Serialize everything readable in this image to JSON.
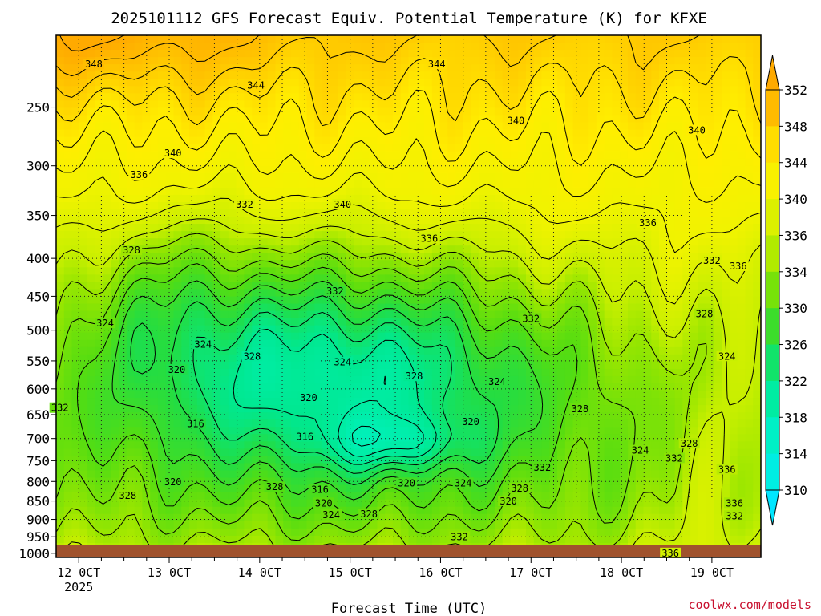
{
  "chart_data": {
    "type": "heatmap",
    "title": "2025101112 GFS Forecast Equiv. Potential Temperature (K) for KFXE",
    "xlabel": "Forecast Time (UTC)",
    "credit": "coolwx.com/models",
    "x_ticks": [
      {
        "label": "12 0CT",
        "hour": 0,
        "sub": "2025"
      },
      {
        "label": "13 0CT",
        "hour": 24,
        "sub": ""
      },
      {
        "label": "14 0CT",
        "hour": 48,
        "sub": ""
      },
      {
        "label": "15 0CT",
        "hour": 72,
        "sub": ""
      },
      {
        "label": "16 0CT",
        "hour": 96,
        "sub": ""
      },
      {
        "label": "17 0CT",
        "hour": 120,
        "sub": ""
      },
      {
        "label": "18 0CT",
        "hour": 144,
        "sub": ""
      },
      {
        "label": "19 0CT",
        "hour": 168,
        "sub": ""
      }
    ],
    "xlim_hours": [
      -6,
      181
    ],
    "y_ticks": [
      250,
      300,
      350,
      400,
      450,
      500,
      550,
      600,
      650,
      700,
      750,
      800,
      850,
      900,
      950,
      1000
    ],
    "ylim_hpa": [
      1013,
      200
    ],
    "y_scale": "log",
    "colorbar": {
      "ticks": [
        310,
        314,
        318,
        322,
        326,
        330,
        334,
        336,
        340,
        344,
        348,
        352
      ],
      "stops": [
        {
          "value": 306,
          "color": "#00e6ff"
        },
        {
          "value": 314,
          "color": "#00f0d8"
        },
        {
          "value": 318,
          "color": "#00f0b4"
        },
        {
          "value": 322,
          "color": "#00e890"
        },
        {
          "value": 326,
          "color": "#22dd44"
        },
        {
          "value": 330,
          "color": "#55dd11"
        },
        {
          "value": 334,
          "color": "#99e600"
        },
        {
          "value": 336,
          "color": "#c8ef00"
        },
        {
          "value": 340,
          "color": "#f0f300"
        },
        {
          "value": 344,
          "color": "#ffee00"
        },
        {
          "value": 348,
          "color": "#ffcc00"
        },
        {
          "value": 352,
          "color": "#ffaa00"
        }
      ]
    },
    "ground_color": "#a0522d",
    "contour_interval_K": 2,
    "grid": true,
    "contour_labels": [
      {
        "text": "348",
        "hour": 4,
        "p": 220
      },
      {
        "text": "344",
        "hour": 95,
        "p": 220
      },
      {
        "text": "344",
        "hour": 47,
        "p": 235
      },
      {
        "text": "340",
        "hour": 25,
        "p": 290
      },
      {
        "text": "340",
        "hour": 116,
        "p": 262
      },
      {
        "text": "340",
        "hour": 164,
        "p": 270
      },
      {
        "text": "336",
        "hour": 16,
        "p": 310
      },
      {
        "text": "332",
        "hour": 44,
        "p": 340
      },
      {
        "text": "340",
        "hour": 70,
        "p": 340
      },
      {
        "text": "336",
        "hour": 93,
        "p": 378
      },
      {
        "text": "336",
        "hour": 151,
        "p": 360
      },
      {
        "text": "328",
        "hour": 14,
        "p": 392
      },
      {
        "text": "332",
        "hour": 168,
        "p": 405
      },
      {
        "text": "336",
        "hour": 175,
        "p": 412
      },
      {
        "text": "332",
        "hour": 68,
        "p": 445
      },
      {
        "text": "332",
        "hour": 120,
        "p": 485
      },
      {
        "text": "328",
        "hour": 166,
        "p": 478
      },
      {
        "text": "324",
        "hour": 7,
        "p": 492
      },
      {
        "text": "324",
        "hour": 33,
        "p": 525
      },
      {
        "text": "328",
        "hour": 46,
        "p": 545
      },
      {
        "text": "324",
        "hour": 70,
        "p": 555
      },
      {
        "text": "324",
        "hour": 172,
        "p": 545
      },
      {
        "text": "320",
        "hour": 26,
        "p": 568
      },
      {
        "text": "328",
        "hour": 89,
        "p": 580
      },
      {
        "text": "324",
        "hour": 111,
        "p": 590
      },
      {
        "text": "320",
        "hour": 61,
        "p": 620
      },
      {
        "text": "332",
        "hour": -5,
        "p": 640
      },
      {
        "text": "328",
        "hour": 133,
        "p": 642
      },
      {
        "text": "316",
        "hour": 31,
        "p": 672
      },
      {
        "text": "320",
        "hour": 104,
        "p": 668
      },
      {
        "text": "316",
        "hour": 60,
        "p": 700
      },
      {
        "text": "328",
        "hour": 162,
        "p": 715
      },
      {
        "text": "324",
        "hour": 149,
        "p": 730
      },
      {
        "text": "332",
        "hour": 158,
        "p": 748
      },
      {
        "text": "332",
        "hour": 123,
        "p": 770
      },
      {
        "text": "336",
        "hour": 172,
        "p": 775
      },
      {
        "text": "320",
        "hour": 25,
        "p": 805
      },
      {
        "text": "328",
        "hour": 52,
        "p": 818
      },
      {
        "text": "320",
        "hour": 87,
        "p": 808
      },
      {
        "text": "324",
        "hour": 102,
        "p": 808
      },
      {
        "text": "316",
        "hour": 64,
        "p": 825
      },
      {
        "text": "328",
        "hour": 117,
        "p": 822
      },
      {
        "text": "328",
        "hour": 13,
        "p": 840
      },
      {
        "text": "320",
        "hour": 65,
        "p": 860
      },
      {
        "text": "320",
        "hour": 114,
        "p": 855
      },
      {
        "text": "336",
        "hour": 174,
        "p": 860
      },
      {
        "text": "324",
        "hour": 67,
        "p": 892
      },
      {
        "text": "328",
        "hour": 77,
        "p": 890
      },
      {
        "text": "332",
        "hour": 174,
        "p": 895
      },
      {
        "text": "332",
        "hour": 101,
        "p": 955
      },
      {
        "text": "336",
        "hour": 157,
        "p": 1005
      }
    ]
  }
}
